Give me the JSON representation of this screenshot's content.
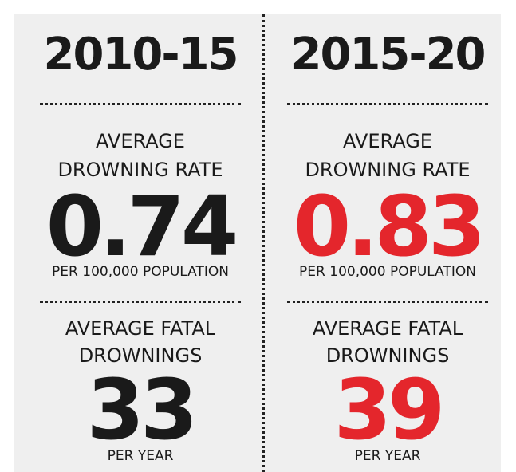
{
  "columns": [
    {
      "period": "2010-15",
      "rate_label": [
        "AVERAGE",
        "DROWNING RATE"
      ],
      "rate": "0.74",
      "rate_unit": "PER 100,000 POPULATION",
      "fatal_label": [
        "AVERAGE FATAL",
        "DROWNINGS"
      ],
      "fatal": "33",
      "fatal_unit": "PER YEAR"
    },
    {
      "period": "2015-20",
      "rate_label": [
        "AVERAGE",
        "DROWNING RATE"
      ],
      "rate": "0.83",
      "rate_unit": "PER 100,000 POPULATION",
      "fatal_label": [
        "AVERAGE FATAL",
        "DROWNINGS"
      ],
      "fatal": "39",
      "fatal_unit": "PER YEAR"
    }
  ]
}
